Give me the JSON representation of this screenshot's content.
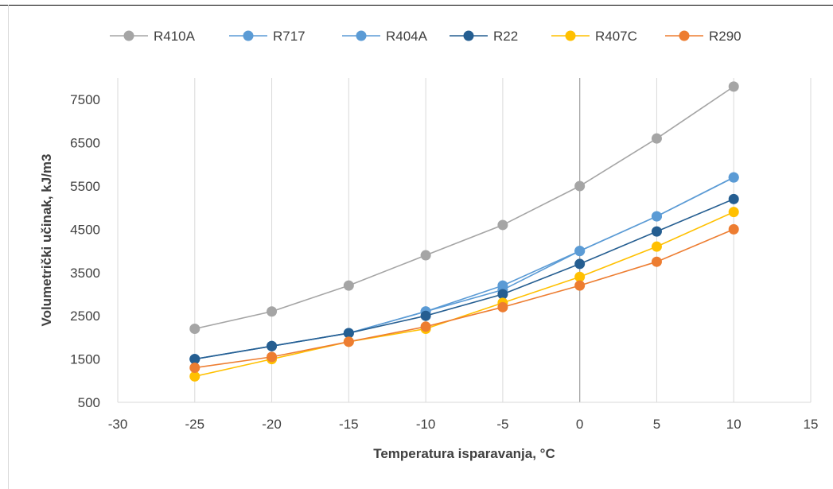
{
  "chart_data": {
    "type": "scatter",
    "xlabel": "Temperatura isparavanja, °C",
    "ylabel": "Volumetrički učinak, kJ/m3",
    "xlim": [
      -30,
      15
    ],
    "ylim": [
      500,
      8000
    ],
    "x_ticks": [
      -30,
      -25,
      -20,
      -15,
      -10,
      -5,
      0,
      5,
      10,
      15
    ],
    "y_ticks": [
      500,
      1500,
      2500,
      3500,
      4500,
      5500,
      6500,
      7500
    ],
    "grid": "vertical",
    "legend_position": "top",
    "series": [
      {
        "name": "R410A",
        "color": "#a5a5a5",
        "x": [
          -25,
          -20,
          -15,
          -10,
          -5,
          0,
          5,
          10
        ],
        "y": [
          2200,
          2600,
          3200,
          3900,
          4600,
          5500,
          6600,
          7800
        ]
      },
      {
        "name": "R717",
        "color": "#5b9bd5",
        "x": [
          -25,
          -20,
          -15,
          -10,
          -5,
          0,
          5,
          10
        ],
        "y": [
          1500,
          1800,
          2100,
          2600,
          3100,
          4000,
          4800,
          5700
        ]
      },
      {
        "name": "R404A",
        "color": "#5b9bd5",
        "x": [
          -25,
          -20,
          -15,
          -10,
          -5,
          0,
          5,
          10
        ],
        "y": [
          1500,
          1800,
          2100,
          2600,
          3200,
          4000,
          4800,
          5700
        ]
      },
      {
        "name": "R22",
        "color": "#255e91",
        "x": [
          -25,
          -20,
          -15,
          -10,
          -5,
          0,
          5,
          10
        ],
        "y": [
          1500,
          1800,
          2100,
          2500,
          3000,
          3700,
          4450,
          5200
        ]
      },
      {
        "name": "R407C",
        "color": "#ffc000",
        "x": [
          -25,
          -20,
          -15,
          -10,
          -5,
          0,
          5,
          10
        ],
        "y": [
          1100,
          1500,
          1900,
          2200,
          2800,
          3400,
          4100,
          4900
        ]
      },
      {
        "name": "R290",
        "color": "#ed7d31",
        "x": [
          -25,
          -20,
          -15,
          -10,
          -5,
          0,
          5,
          10
        ],
        "y": [
          1300,
          1550,
          1900,
          2250,
          2700,
          3200,
          3750,
          4500
        ]
      }
    ]
  }
}
